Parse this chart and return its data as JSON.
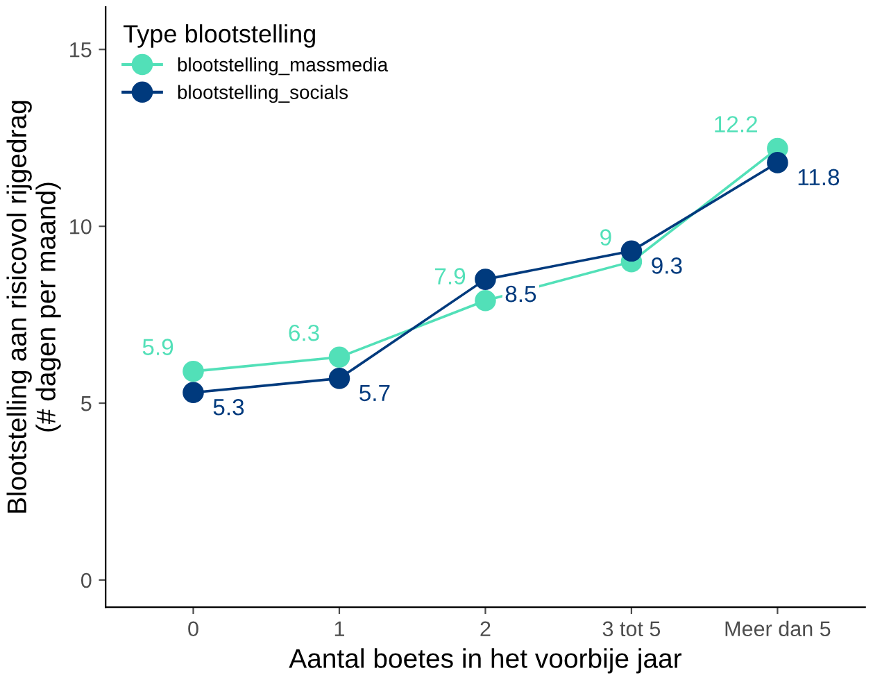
{
  "chart_data": {
    "type": "line",
    "xlabel": "Aantal boetes in het voorbije jaar",
    "ylabel": "Blootstelling aan risicovol rijgedrag\n(# dagen per maand)",
    "legend_title": "Type blootstelling",
    "categories": [
      "0",
      "1",
      "2",
      "3 tot 5",
      "Meer dan 5"
    ],
    "series": [
      {
        "name": "blootstelling_massmedia",
        "color": "#52e0b8",
        "values": [
          5.9,
          6.3,
          7.9,
          9,
          12.2
        ]
      },
      {
        "name": "blootstelling_socials",
        "color": "#003a7d",
        "values": [
          5.3,
          5.7,
          8.5,
          9.3,
          11.8
        ]
      }
    ],
    "ylim": [
      -0.77,
      16.2
    ],
    "yticks": [
      0,
      5,
      10,
      15
    ],
    "grid": false,
    "legend": "top left",
    "marker": "circle",
    "line_style": "solid",
    "data_labels": true
  }
}
